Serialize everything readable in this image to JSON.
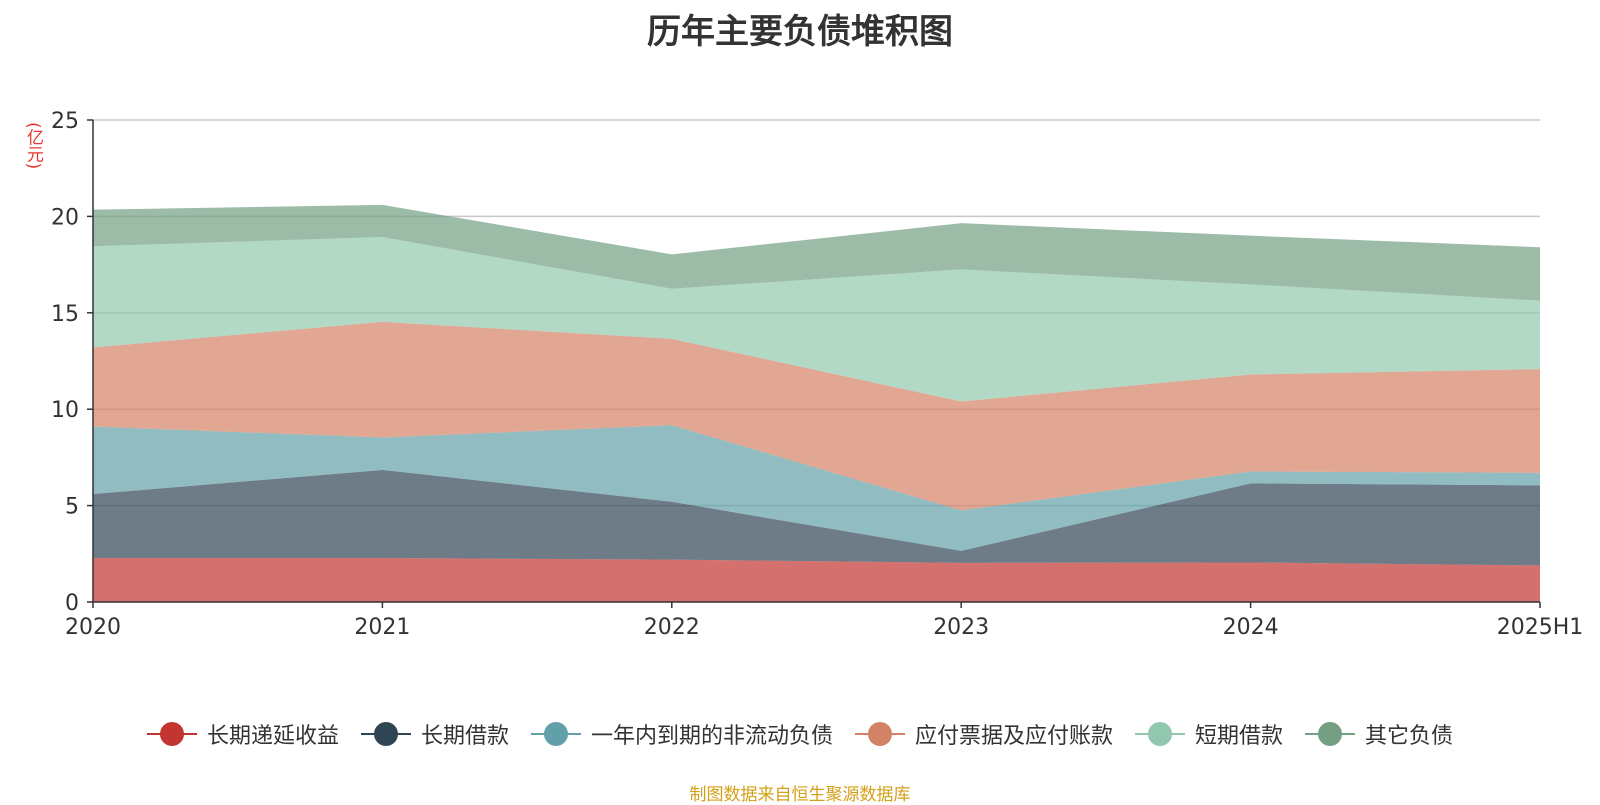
{
  "chart_data": {
    "type": "area",
    "stacked": true,
    "title": "历年主要负债堆积图",
    "unit_label": "(亿元)",
    "categories": [
      "2020",
      "2021",
      "2022",
      "2023",
      "2024",
      "2025H1"
    ],
    "y_ticks": [
      "0",
      "5",
      "10",
      "15",
      "20",
      "25"
    ],
    "ylim": [
      0,
      25
    ],
    "grid": true,
    "legend_position": "bottom",
    "series": [
      {
        "name": "长期递延收益",
        "values": [
          2.28,
          2.28,
          2.2,
          2.03,
          2.05,
          1.9
        ],
        "color": "#c23531"
      },
      {
        "name": "长期借款",
        "values": [
          3.32,
          4.57,
          3.0,
          0.62,
          4.1,
          4.15
        ],
        "color": "#2f4554"
      },
      {
        "name": "一年内到期的非流动负债",
        "values": [
          3.5,
          1.68,
          3.97,
          2.1,
          0.62,
          0.65
        ],
        "color": "#61a0a8"
      },
      {
        "name": "应付票据及应付账款",
        "values": [
          4.1,
          6.0,
          4.48,
          5.65,
          5.03,
          5.38
        ],
        "color": "#d48265"
      },
      {
        "name": "短期借款",
        "values": [
          5.25,
          4.4,
          2.6,
          6.85,
          4.67,
          3.55
        ],
        "color": "#91c7ae"
      },
      {
        "name": "其它负债",
        "values": [
          1.9,
          1.67,
          1.78,
          2.4,
          2.53,
          2.77
        ],
        "color": "#749f83"
      }
    ],
    "source_note": "制图数据来自恒生聚源数据库"
  }
}
